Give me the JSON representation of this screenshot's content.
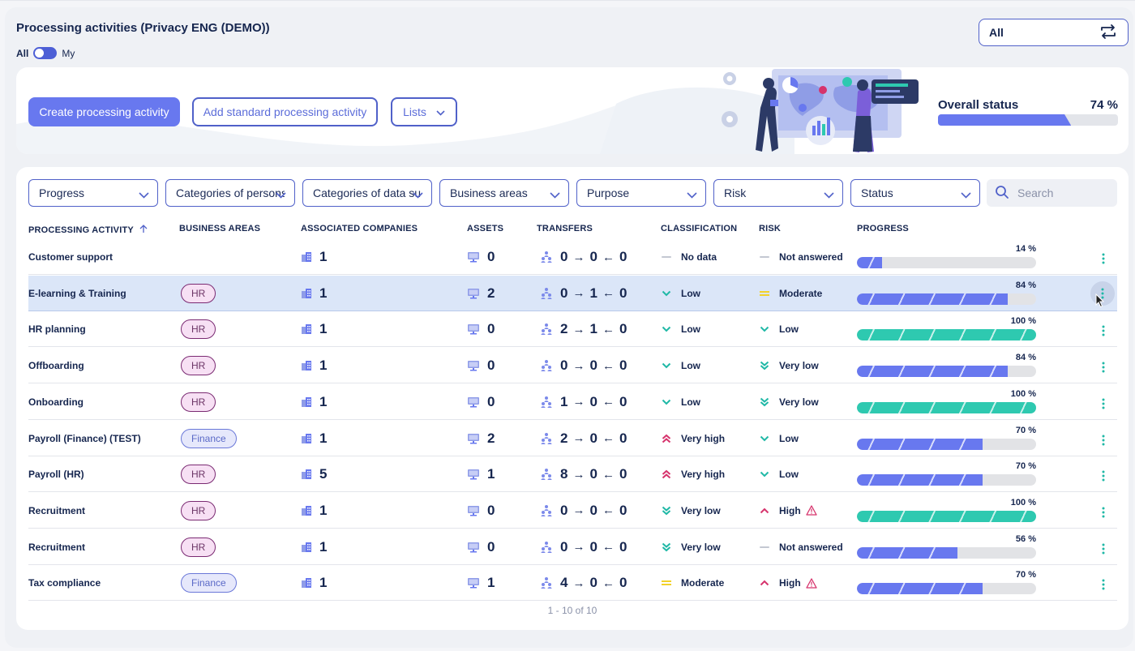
{
  "header": {
    "title": "Processing activities (Privacy ENG (DEMO))",
    "toggle_all": "All",
    "toggle_my": "My",
    "scope_select": "All"
  },
  "banner": {
    "create_button": "Create processing activity",
    "add_standard_button": "Add standard processing activity",
    "lists_button": "Lists",
    "overall_status_label": "Overall status",
    "overall_status_pct": "74 %",
    "overall_status_value": 74
  },
  "filters": [
    "Progress",
    "Categories of persons",
    "Categories of data subjects",
    "Business areas",
    "Purpose",
    "Risk",
    "Status"
  ],
  "search": {
    "placeholder": "Search"
  },
  "columns": {
    "activity": "PROCESSING ACTIVITY",
    "business_areas": "BUSINESS AREAS",
    "companies": "ASSOCIATED COMPANIES",
    "assets": "ASSETS",
    "transfers": "TRANSFERS",
    "classification": "CLASSIFICATION",
    "risk": "RISK",
    "progress": "PROGRESS"
  },
  "rows": [
    {
      "name": "Customer support",
      "area": "",
      "area_type": "",
      "companies": "1",
      "assets": "0",
      "t_in": "0",
      "t_mid": "0",
      "t_out": "0",
      "classification": "No data",
      "cls_icon": "dash-icon",
      "risk": "Not answered",
      "risk_icon": "dash-icon",
      "risk_warn": false,
      "progress_pct": "14 %",
      "progress": 14,
      "bar": "blue"
    },
    {
      "name": "E-learning & Training",
      "area": "HR",
      "area_type": "hr",
      "companies": "1",
      "assets": "2",
      "t_in": "0",
      "t_mid": "1",
      "t_out": "0",
      "classification": "Low",
      "cls_icon": "chevron-down-icon",
      "risk": "Moderate",
      "risk_icon": "equals-icon",
      "risk_warn": false,
      "progress_pct": "84 %",
      "progress": 84,
      "bar": "blue",
      "selected": true
    },
    {
      "name": "HR planning",
      "area": "HR",
      "area_type": "hr",
      "companies": "1",
      "assets": "0",
      "t_in": "2",
      "t_mid": "1",
      "t_out": "0",
      "classification": "Low",
      "cls_icon": "chevron-down-icon",
      "risk": "Low",
      "risk_icon": "chevron-down-icon",
      "risk_warn": false,
      "progress_pct": "100 %",
      "progress": 100,
      "bar": "green"
    },
    {
      "name": "Offboarding",
      "area": "HR",
      "area_type": "hr",
      "companies": "1",
      "assets": "0",
      "t_in": "0",
      "t_mid": "0",
      "t_out": "0",
      "classification": "Low",
      "cls_icon": "chevron-down-icon",
      "risk": "Very low",
      "risk_icon": "double-chevron-down-icon",
      "risk_warn": false,
      "progress_pct": "84 %",
      "progress": 84,
      "bar": "blue"
    },
    {
      "name": "Onboarding",
      "area": "HR",
      "area_type": "hr",
      "companies": "1",
      "assets": "0",
      "t_in": "1",
      "t_mid": "0",
      "t_out": "0",
      "classification": "Low",
      "cls_icon": "chevron-down-icon",
      "risk": "Very low",
      "risk_icon": "double-chevron-down-icon",
      "risk_warn": false,
      "progress_pct": "100 %",
      "progress": 100,
      "bar": "green"
    },
    {
      "name": "Payroll (Finance) (TEST)",
      "area": "Finance",
      "area_type": "fin",
      "companies": "1",
      "assets": "2",
      "t_in": "2",
      "t_mid": "0",
      "t_out": "0",
      "classification": "Very high",
      "cls_icon": "double-chevron-up-icon",
      "risk": "Low",
      "risk_icon": "chevron-down-icon",
      "risk_warn": false,
      "progress_pct": "70 %",
      "progress": 70,
      "bar": "blue"
    },
    {
      "name": "Payroll (HR)",
      "area": "HR",
      "area_type": "hr",
      "companies": "5",
      "assets": "1",
      "t_in": "8",
      "t_mid": "0",
      "t_out": "0",
      "classification": "Very high",
      "cls_icon": "double-chevron-up-icon",
      "risk": "Low",
      "risk_icon": "chevron-down-icon",
      "risk_warn": false,
      "progress_pct": "70 %",
      "progress": 70,
      "bar": "blue"
    },
    {
      "name": "Recruitment",
      "area": "HR",
      "area_type": "hr",
      "companies": "1",
      "assets": "0",
      "t_in": "0",
      "t_mid": "0",
      "t_out": "0",
      "classification": "Very low",
      "cls_icon": "double-chevron-down-icon",
      "risk": "High",
      "risk_icon": "chevron-up-icon",
      "risk_warn": true,
      "progress_pct": "100 %",
      "progress": 100,
      "bar": "green"
    },
    {
      "name": "Recruitment",
      "area": "HR",
      "area_type": "hr",
      "companies": "1",
      "assets": "0",
      "t_in": "0",
      "t_mid": "0",
      "t_out": "0",
      "classification": "Very low",
      "cls_icon": "double-chevron-down-icon",
      "risk": "Not answered",
      "risk_icon": "dash-icon",
      "risk_warn": false,
      "progress_pct": "56 %",
      "progress": 56,
      "bar": "blue"
    },
    {
      "name": "Tax compliance",
      "area": "Finance",
      "area_type": "fin",
      "companies": "1",
      "assets": "1",
      "t_in": "4",
      "t_mid": "0",
      "t_out": "0",
      "classification": "Moderate",
      "cls_icon": "equals-icon",
      "risk": "High",
      "risk_icon": "chevron-up-icon",
      "risk_warn": true,
      "progress_pct": "70 %",
      "progress": 70,
      "bar": "blue"
    }
  ],
  "pager": "1 - 10 of 10",
  "colors": {
    "accent": "#6878ef",
    "complete": "#2ec9b0",
    "navy": "#16264f",
    "high": "#d6336c",
    "moderate": "#f2d22a",
    "low": "#1fb8a6"
  }
}
